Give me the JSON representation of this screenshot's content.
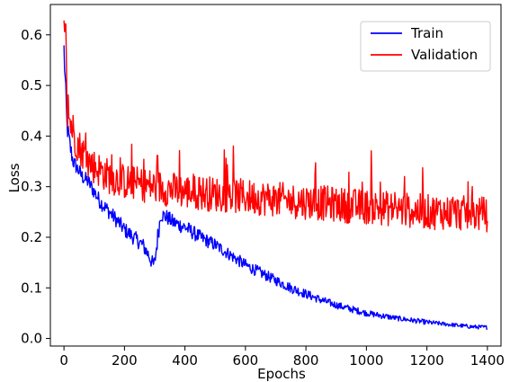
{
  "chart_data": {
    "type": "line",
    "title": "",
    "xlabel": "Epochs",
    "ylabel": "Loss",
    "xlim": [
      -45,
      1445
    ],
    "ylim": [
      -0.015,
      0.66
    ],
    "xticks": [
      0,
      200,
      400,
      600,
      800,
      1000,
      1200,
      1400
    ],
    "yticks": [
      0.0,
      0.1,
      0.2,
      0.3,
      0.4,
      0.5,
      0.6
    ],
    "ytick_labels": [
      "0.0",
      "0.1",
      "0.2",
      "0.3",
      "0.4",
      "0.5",
      "0.6"
    ],
    "grid": false,
    "legend_position": "top-right",
    "series": [
      {
        "name": "Train",
        "color": "#0000ff",
        "x": [
          0,
          10,
          20,
          30,
          40,
          60,
          80,
          100,
          120,
          150,
          180,
          200,
          230,
          260,
          280,
          295,
          300,
          310,
          320,
          340,
          360,
          400,
          450,
          500,
          550,
          600,
          650,
          700,
          750,
          800,
          850,
          900,
          950,
          1000,
          1050,
          1100,
          1150,
          1200,
          1250,
          1300,
          1350,
          1400
        ],
        "y": [
          0.57,
          0.42,
          0.38,
          0.35,
          0.34,
          0.32,
          0.31,
          0.29,
          0.27,
          0.25,
          0.23,
          0.215,
          0.2,
          0.185,
          0.165,
          0.145,
          0.15,
          0.2,
          0.245,
          0.24,
          0.23,
          0.22,
          0.2,
          0.185,
          0.165,
          0.145,
          0.13,
          0.115,
          0.1,
          0.088,
          0.076,
          0.066,
          0.058,
          0.05,
          0.045,
          0.04,
          0.036,
          0.032,
          0.029,
          0.026,
          0.023,
          0.022
        ],
        "noise": [
          0.03,
          0.02,
          0.02,
          0.015,
          0.015,
          0.015,
          0.015,
          0.015,
          0.015,
          0.015,
          0.015,
          0.015,
          0.015,
          0.015,
          0.015,
          0.015,
          0.015,
          0.02,
          0.015,
          0.015,
          0.015,
          0.015,
          0.014,
          0.013,
          0.012,
          0.012,
          0.011,
          0.01,
          0.01,
          0.009,
          0.008,
          0.007,
          0.007,
          0.006,
          0.006,
          0.005,
          0.005,
          0.005,
          0.004,
          0.004,
          0.004,
          0.004
        ]
      },
      {
        "name": "Validation",
        "color": "#ff0000",
        "x": [
          0,
          5,
          10,
          20,
          30,
          40,
          60,
          80,
          100,
          150,
          200,
          250,
          300,
          350,
          400,
          450,
          500,
          550,
          600,
          650,
          700,
          750,
          800,
          850,
          900,
          950,
          1000,
          1050,
          1100,
          1150,
          1200,
          1250,
          1300,
          1350,
          1400
        ],
        "y": [
          0.63,
          0.64,
          0.45,
          0.43,
          0.41,
          0.39,
          0.37,
          0.35,
          0.34,
          0.32,
          0.31,
          0.305,
          0.3,
          0.295,
          0.29,
          0.288,
          0.285,
          0.283,
          0.28,
          0.278,
          0.275,
          0.272,
          0.27,
          0.268,
          0.265,
          0.262,
          0.26,
          0.258,
          0.255,
          0.253,
          0.25,
          0.25,
          0.248,
          0.247,
          0.245
        ],
        "noise": [
          0.03,
          0.03,
          0.04,
          0.04,
          0.04,
          0.035,
          0.035,
          0.035,
          0.035,
          0.035,
          0.035,
          0.035,
          0.035,
          0.035,
          0.035,
          0.035,
          0.035,
          0.035,
          0.035,
          0.035,
          0.035,
          0.035,
          0.035,
          0.035,
          0.035,
          0.035,
          0.035,
          0.035,
          0.035,
          0.035,
          0.035,
          0.035,
          0.035,
          0.035,
          0.035
        ]
      }
    ]
  }
}
